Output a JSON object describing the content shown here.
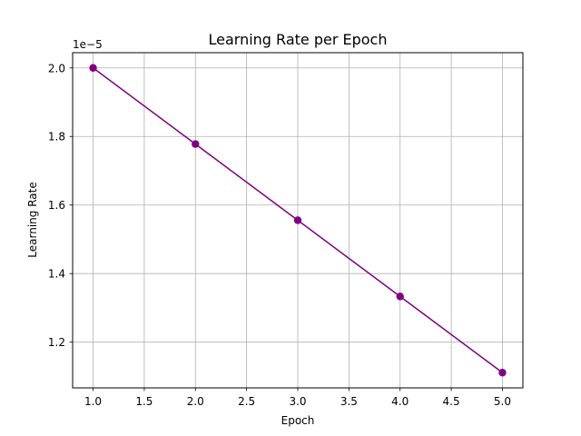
{
  "chart_data": {
    "type": "line",
    "title": "Learning Rate per Epoch",
    "xlabel": "Epoch",
    "ylabel": "Learning Rate",
    "y_offset_label": "1e−5",
    "x": [
      1,
      2,
      3,
      4,
      5
    ],
    "series": [
      {
        "values": [
          2e-05,
          1.7778e-05,
          1.5556e-05,
          1.3333e-05,
          1.1111e-05
        ],
        "color": "#800080",
        "marker": "circle"
      }
    ],
    "xlim": [
      0.8,
      5.2
    ],
    "ylim": [
      1.0667e-05,
      2.0444e-05
    ],
    "x_ticks": [
      1.0,
      1.5,
      2.0,
      2.5,
      3.0,
      3.5,
      4.0,
      4.5,
      5.0
    ],
    "x_tick_labels": [
      "1.0",
      "1.5",
      "2.0",
      "2.5",
      "3.0",
      "3.5",
      "4.0",
      "4.5",
      "5.0"
    ],
    "y_ticks": [
      1.2e-05,
      1.4e-05,
      1.6e-05,
      1.8e-05,
      2e-05
    ],
    "y_tick_labels": [
      "1.2",
      "1.4",
      "1.6",
      "1.8",
      "2.0"
    ],
    "grid": true,
    "grid_color": "#b0b0b0"
  }
}
